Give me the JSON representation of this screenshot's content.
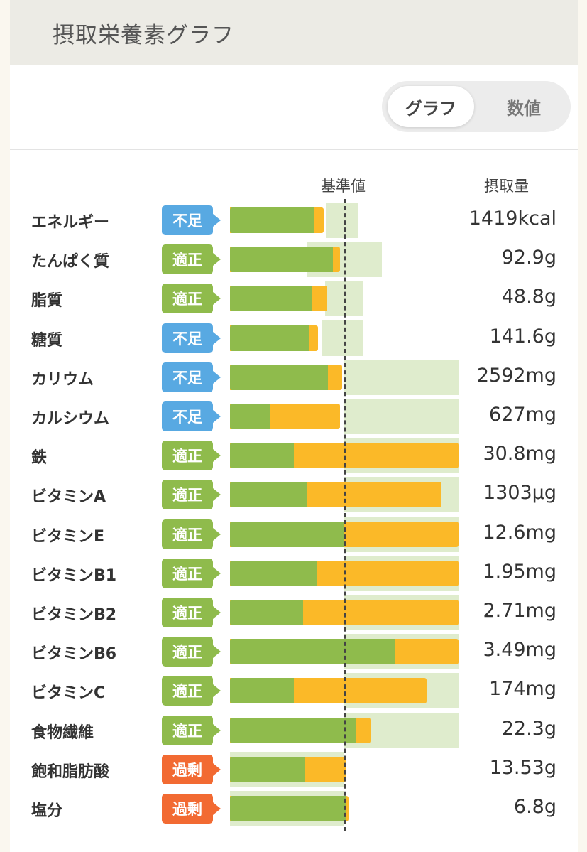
{
  "header": {
    "title": "摂取栄養素グラフ"
  },
  "toggle": {
    "graph_label": "グラフ",
    "number_label": "数値"
  },
  "columns": {
    "standard_label": "基準値",
    "intake_label": "摂取量"
  },
  "status_colors": {
    "不足": "#58a9e2",
    "適正": "#8fbb4c",
    "過剰": "#f26a32"
  },
  "bar_colors": {
    "green": "#8fbb4c",
    "orange": "#fbb928",
    "range": "#dfeccd"
  },
  "nutrients": [
    {
      "name": "エネルギー",
      "status": "不足",
      "value": "1419kcal",
      "green_pct": 74,
      "total_pct": 82,
      "range_lo": 84,
      "range_hi": 112
    },
    {
      "name": "たんぱく質",
      "status": "適正",
      "value": "92.9g",
      "green_pct": 90,
      "total_pct": 96,
      "range_lo": 67,
      "range_hi": 133
    },
    {
      "name": "脂質",
      "status": "適正",
      "value": "48.8g",
      "green_pct": 72,
      "total_pct": 85,
      "range_lo": 83,
      "range_hi": 117
    },
    {
      "name": "糖質",
      "status": "不足",
      "value": "141.6g",
      "green_pct": 69,
      "total_pct": 77,
      "range_lo": 81,
      "range_hi": 117
    },
    {
      "name": "カリウム",
      "status": "不足",
      "value": "2592mg",
      "green_pct": 86,
      "total_pct": 98,
      "range_lo": 100,
      "range_hi": 200
    },
    {
      "name": "カルシウム",
      "status": "不足",
      "value": "627mg",
      "green_pct": 35,
      "total_pct": 96,
      "range_lo": 100,
      "range_hi": 200
    },
    {
      "name": "鉄",
      "status": "適正",
      "value": "30.8mg",
      "green_pct": 56,
      "total_pct": 200,
      "range_lo": 100,
      "range_hi": 200
    },
    {
      "name": "ビタミンA",
      "status": "適正",
      "value": "1303µg",
      "green_pct": 67,
      "total_pct": 185,
      "range_lo": 100,
      "range_hi": 200
    },
    {
      "name": "ビタミンE",
      "status": "適正",
      "value": "12.6mg",
      "green_pct": 100,
      "total_pct": 200,
      "range_lo": 100,
      "range_hi": 200
    },
    {
      "name": "ビタミンB1",
      "status": "適正",
      "value": "1.95mg",
      "green_pct": 76,
      "total_pct": 200,
      "range_lo": 100,
      "range_hi": 200
    },
    {
      "name": "ビタミンB2",
      "status": "適正",
      "value": "2.71mg",
      "green_pct": 64,
      "total_pct": 200,
      "range_lo": 100,
      "range_hi": 200
    },
    {
      "name": "ビタミンB6",
      "status": "適正",
      "value": "3.49mg",
      "green_pct": 144,
      "total_pct": 200,
      "range_lo": 100,
      "range_hi": 200
    },
    {
      "name": "ビタミンC",
      "status": "適正",
      "value": "174mg",
      "green_pct": 56,
      "total_pct": 172,
      "range_lo": 100,
      "range_hi": 200
    },
    {
      "name": "食物繊維",
      "status": "適正",
      "value": "22.3g",
      "green_pct": 110,
      "total_pct": 123,
      "range_lo": 100,
      "range_hi": 200
    },
    {
      "name": "飽和脂肪酸",
      "status": "過剰",
      "value": "13.53g",
      "green_pct": 66,
      "total_pct": 101,
      "range_lo": 0,
      "range_hi": 100
    },
    {
      "name": "塩分",
      "status": "過剰",
      "value": "6.8g",
      "green_pct": 101,
      "total_pct": 104,
      "range_lo": 0,
      "range_hi": 100
    }
  ]
}
